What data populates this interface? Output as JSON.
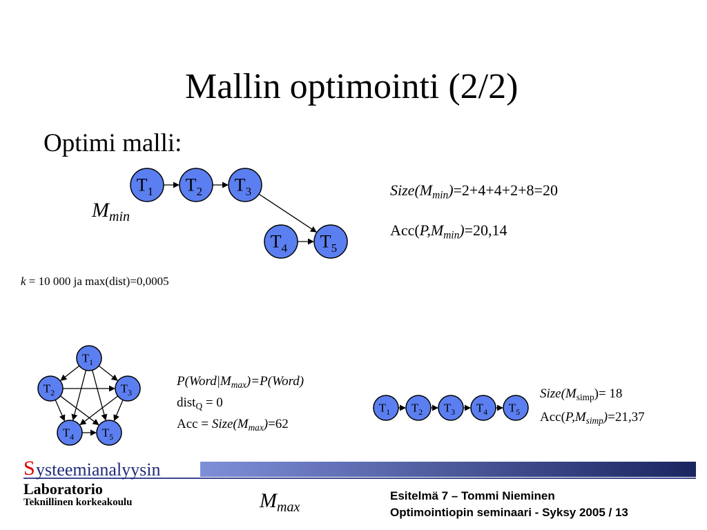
{
  "title": "Mallin optimointi (2/2)",
  "subtitle": "Optimi malli:",
  "node_label": "T",
  "m_symbol": "M",
  "m_min_sub": "min",
  "m_max_sub": "max",
  "params": {
    "k_var": "k",
    "k_text": " = 10 000 ja max(dist)=0,0005"
  },
  "mmin_stats": {
    "size_a": "Size(M",
    "size_sub": "min",
    "size_b": ")",
    "size_c": "=2+4+4+2+8=20",
    "acc_a": "Acc(",
    "acc_b": "P,M",
    "acc_sub": "min",
    "acc_c": ")",
    "acc_d": "=20,14"
  },
  "mmax_stats": {
    "p_a": "P(Word|M",
    "p_sub": "max",
    "p_b": ")=P(Word)",
    "dist_a": "dist",
    "dist_sub": "Q",
    "dist_b": " = 0",
    "acc_a": "Acc = ",
    "acc_b": "Size(M",
    "acc_sub": "max",
    "acc_c": ")",
    "acc_d": "=62"
  },
  "msimp_stats": {
    "size_a": "Size(M",
    "size_sub": "simp",
    "size_b": ")= 18",
    "acc_a": "Acc(",
    "acc_b": "P,M",
    "acc_sub": "simp",
    "acc_c": ")",
    "acc_d": "=21,37"
  },
  "logo": {
    "s": "S",
    "word": "ysteemianalyysin",
    "line1": "Laboratorio",
    "line2": "Teknillinen korkeakoulu"
  },
  "footer": {
    "line1": "Esitelmä 7 – Tommi Nieminen",
    "line2": "Optimointiopin seminaari - Syksy 2005 / 13"
  },
  "colors": {
    "node_fill": "#5b7ff0",
    "logo_blue": "#1f2a7a",
    "logo_red": "#e00000"
  }
}
